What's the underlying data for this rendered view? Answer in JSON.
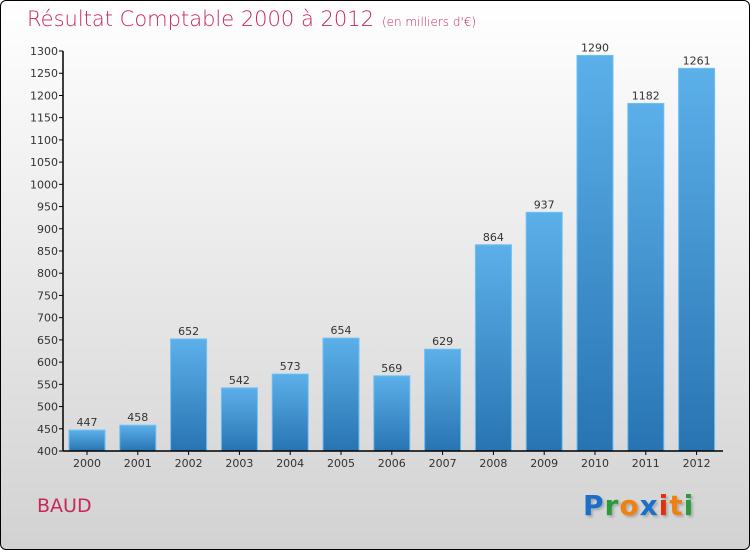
{
  "chart_data": {
    "type": "bar",
    "title": "Résultat Comptable 2000 à 2012",
    "subtitle": "(en milliers d'€)",
    "categories": [
      "2000",
      "2001",
      "2002",
      "2003",
      "2004",
      "2005",
      "2006",
      "2007",
      "2008",
      "2009",
      "2010",
      "2011",
      "2012"
    ],
    "values": [
      447,
      458,
      652,
      542,
      573,
      654,
      569,
      629,
      864,
      937,
      1290,
      1182,
      1261
    ],
    "ylim": [
      400,
      1300
    ],
    "ytick_step": 50,
    "xlabel": "",
    "ylabel": "",
    "grid": false,
    "bar_color_top": "#5cb0ea",
    "bar_color_bottom": "#2874b2"
  },
  "location": "BAUD",
  "logo": {
    "letters": [
      "P",
      "r",
      "o",
      "x",
      "i",
      "t",
      "i"
    ],
    "colors": [
      "#1a6fc8",
      "#2a9a3a",
      "#f08010",
      "#1a6fc8",
      "#e03010",
      "#f08010",
      "#2a9a3a"
    ]
  }
}
